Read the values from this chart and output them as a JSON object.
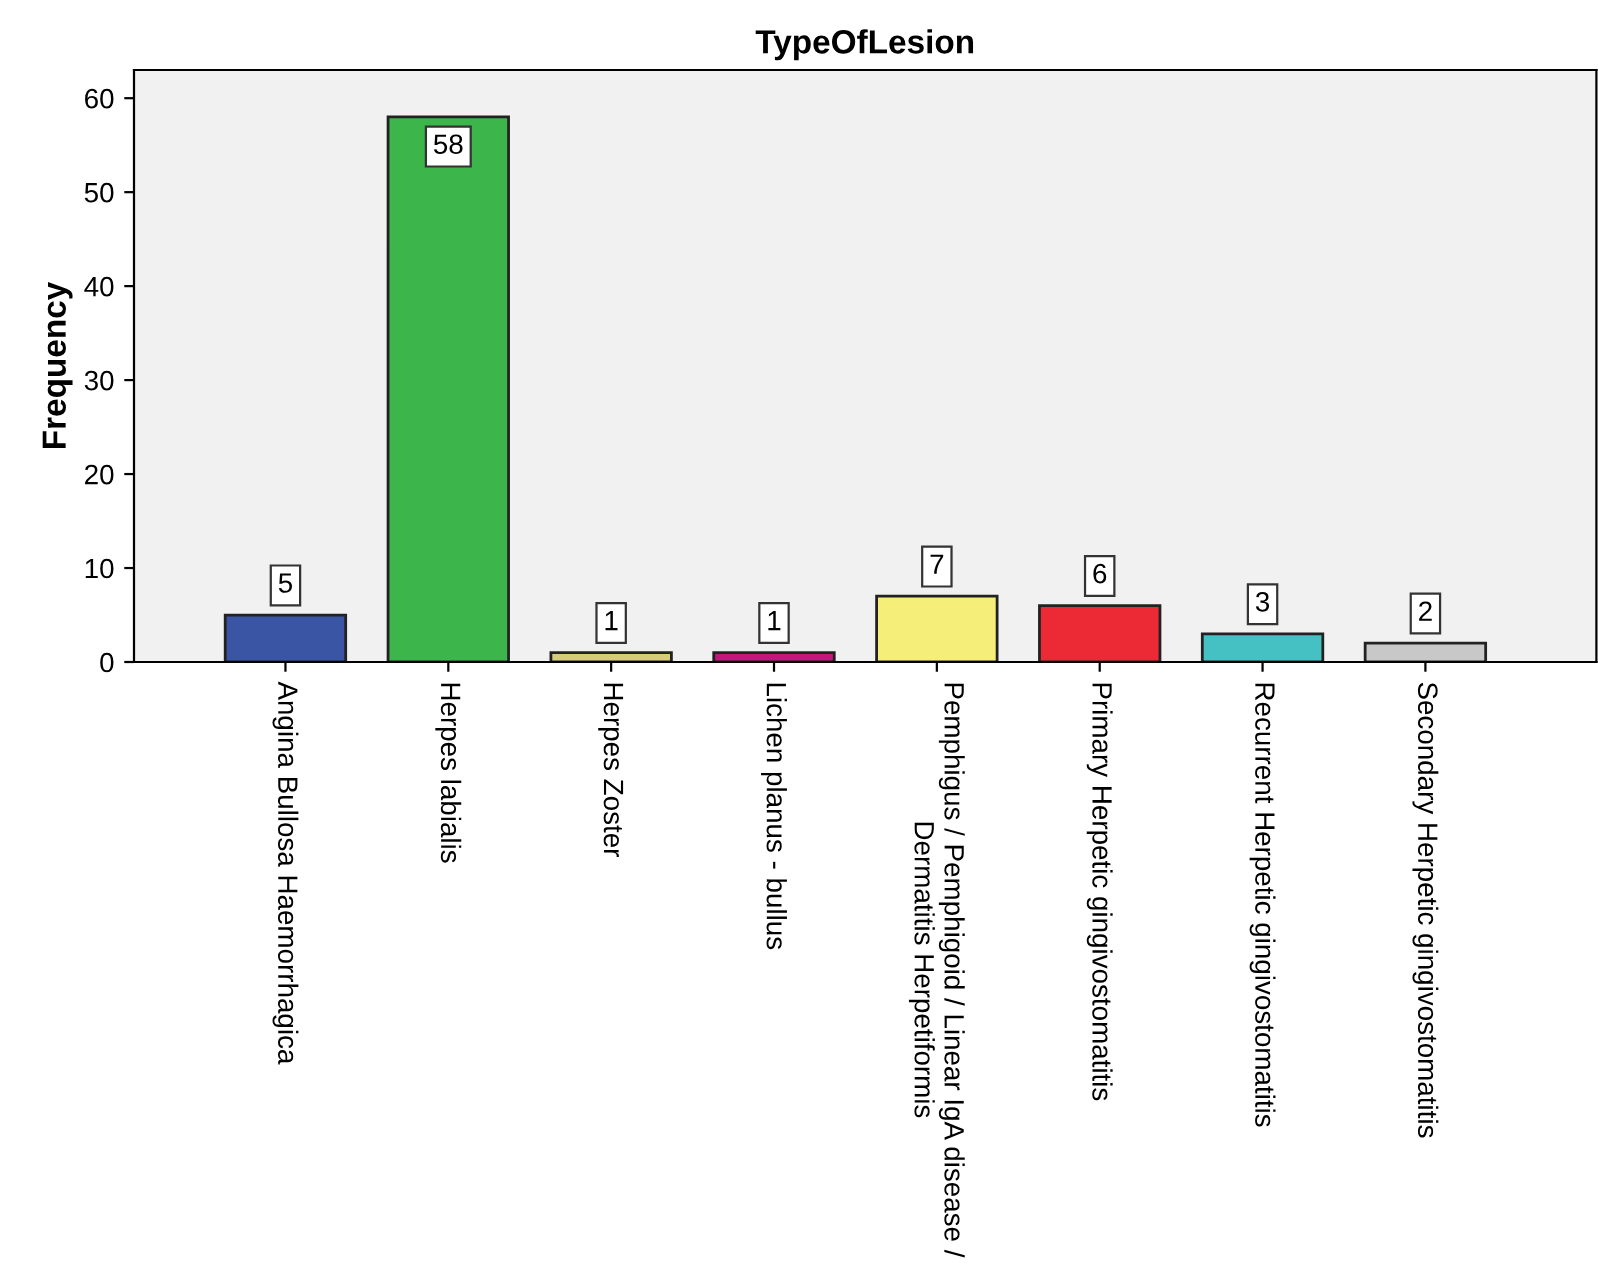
{
  "chart_data": {
    "type": "bar",
    "title": "TypeOfLesion",
    "ylabel": "Frequency",
    "categories": [
      "Angina Bullosa Haemorrhagica",
      "Herpes labialis",
      "Herpes Zoster",
      "Lichen planus - bullus",
      "Pemphigus / Pemphigoid / Linear IgA disease /\nDermatitis Herpetiformis",
      "Primary Herpetic gingivostomatitis",
      "Recurrent Herpetic gingivostomatitis",
      "Secondary Herpetic gingivostomatitis"
    ],
    "values": [
      5,
      58,
      1,
      1,
      7,
      6,
      3,
      2
    ],
    "colors": [
      "#3a55a4",
      "#3cb54a",
      "#d6cc7a",
      "#c4177e",
      "#f5ef7a",
      "#ec2a35",
      "#45c1c3",
      "#c8c8c8"
    ],
    "ylim": [
      0,
      63
    ],
    "yticks": [
      0,
      10,
      20,
      30,
      40,
      50,
      60
    ],
    "data_labels": true,
    "grid": false,
    "legend": false
  }
}
